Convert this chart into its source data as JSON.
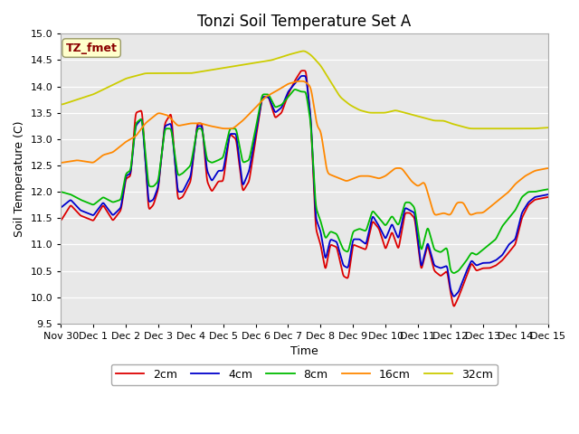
{
  "title": "Tonzi Soil Temperature Set A",
  "xlabel": "Time",
  "ylabel": "Soil Temperature (C)",
  "ylim": [
    9.5,
    15.0
  ],
  "xlim": [
    0,
    15
  ],
  "xtick_labels": [
    "Nov 30",
    "Dec 1",
    "Dec 2",
    "Dec 3",
    "Dec 4",
    "Dec 5",
    "Dec 6",
    "Dec 7",
    "Dec 8",
    "Dec 9",
    "Dec 10",
    "Dec 11",
    "Dec 12",
    "Dec 13",
    "Dec 14",
    "Dec 15"
  ],
  "legend_entries": [
    "2cm",
    "4cm",
    "8cm",
    "16cm",
    "32cm"
  ],
  "line_colors": [
    "#dd0000",
    "#0000cc",
    "#00bb00",
    "#ff8800",
    "#cccc00"
  ],
  "background_color": "#ffffff",
  "plot_bg_color": "#e8e8e8",
  "annotation_text": "TZ_fmet",
  "annotation_color": "#8b0000",
  "annotation_bg": "#ffffcc",
  "title_fontsize": 12,
  "label_fontsize": 9,
  "tick_fontsize": 8
}
